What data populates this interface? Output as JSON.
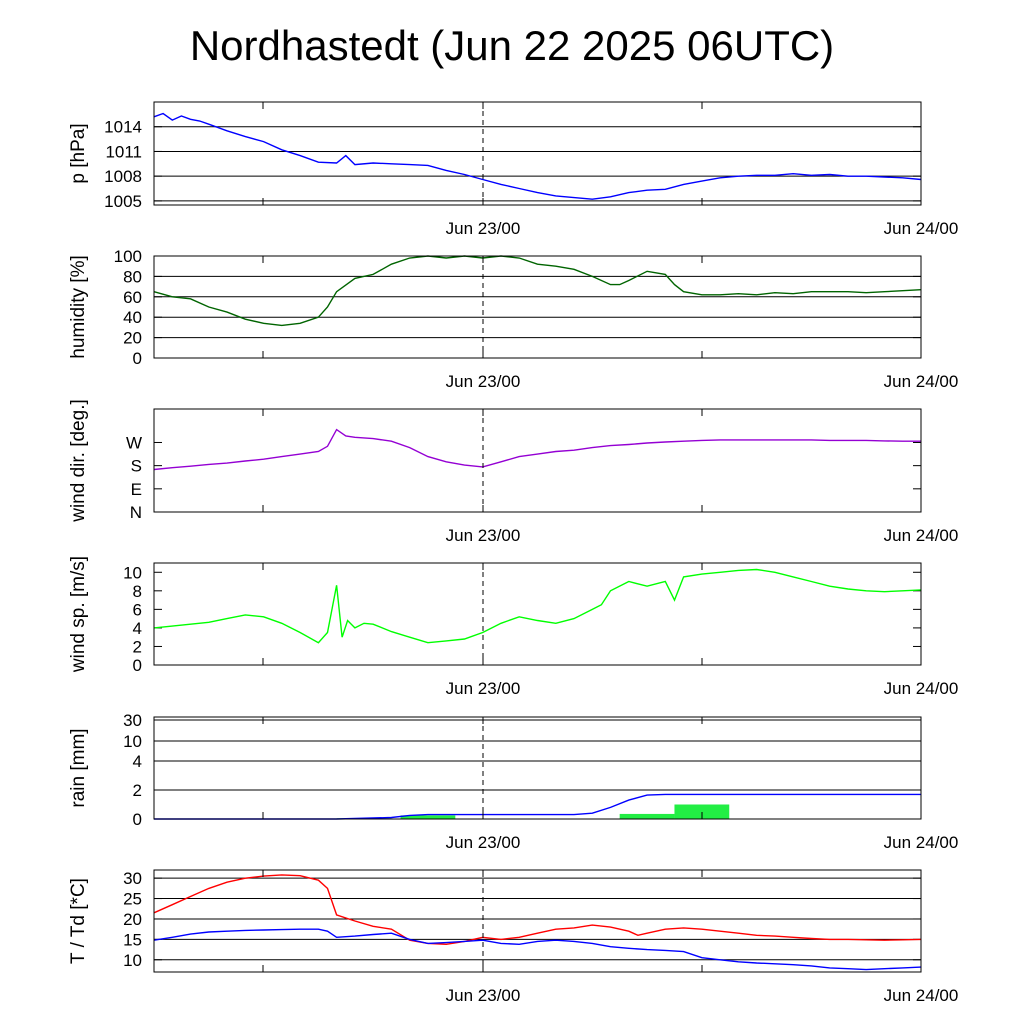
{
  "title": "Nordhastedt (Jun 22 2025 06UTC)",
  "x_ticks": [
    "Jun 23/00",
    "Jun 24/00"
  ],
  "chart_data": [
    {
      "type": "line",
      "ylabel": "p [hPa]",
      "x_unit": "hours since Jun 22 2025 06UTC",
      "xlim": [
        0,
        42
      ],
      "ylim": [
        1004.5,
        1017
      ],
      "yticks": [
        1005,
        1008,
        1011,
        1014
      ],
      "grid": true,
      "series": [
        {
          "color": "#0000ff",
          "x": [
            0,
            0.5,
            1,
            1.5,
            2,
            2.5,
            3,
            4,
            5,
            6,
            7,
            8,
            9,
            10,
            10.5,
            11,
            12,
            13,
            14,
            15,
            16,
            17,
            18,
            19,
            20,
            21,
            22,
            23,
            24,
            25,
            26,
            27,
            28,
            29,
            30,
            31,
            32,
            33,
            34,
            35,
            36,
            37,
            38,
            39,
            40,
            41,
            42
          ],
          "y": [
            1015.2,
            1015.6,
            1014.8,
            1015.3,
            1014.9,
            1014.7,
            1014.3,
            1013.5,
            1012.8,
            1012.2,
            1011.2,
            1010.5,
            1009.7,
            1009.6,
            1010.5,
            1009.4,
            1009.6,
            1009.5,
            1009.4,
            1009.3,
            1008.7,
            1008.2,
            1007.6,
            1007.0,
            1006.5,
            1006.0,
            1005.6,
            1005.4,
            1005.2,
            1005.5,
            1006.0,
            1006.3,
            1006.4,
            1007.0,
            1007.4,
            1007.8,
            1008.0,
            1008.1,
            1008.1,
            1008.3,
            1008.1,
            1008.2,
            1008.0,
            1008.0,
            1007.9,
            1007.8,
            1007.6
          ]
        }
      ]
    },
    {
      "type": "line",
      "ylabel": "humidity [%]",
      "x_unit": "hours since Jun 22 2025 06UTC",
      "xlim": [
        0,
        42
      ],
      "ylim": [
        0,
        100
      ],
      "yticks": [
        0,
        20,
        40,
        60,
        80,
        100
      ],
      "grid": true,
      "series": [
        {
          "color": "#006400",
          "x": [
            0,
            1,
            2,
            3,
            4,
            5,
            6,
            7,
            8,
            9,
            9.5,
            10,
            11,
            12,
            13,
            14,
            15,
            16,
            17,
            18,
            19,
            20,
            21,
            22,
            23,
            24,
            25,
            25.5,
            26,
            27,
            28,
            28.5,
            29,
            30,
            31,
            32,
            33,
            34,
            35,
            36,
            37,
            38,
            39,
            40,
            41,
            42
          ],
          "y": [
            65,
            60,
            58,
            50,
            45,
            38,
            34,
            32,
            34,
            40,
            50,
            65,
            78,
            82,
            92,
            98,
            100,
            98,
            100,
            98,
            100,
            98,
            92,
            90,
            87,
            80,
            72,
            72,
            76,
            85,
            82,
            72,
            65,
            62,
            62,
            63,
            62,
            64,
            63,
            65,
            65,
            65,
            64,
            65,
            66,
            67
          ]
        }
      ]
    },
    {
      "type": "line",
      "ylabel": "wind dir. [deg.]",
      "x_unit": "hours since Jun 22 2025 06UTC",
      "xlim": [
        0,
        42
      ],
      "ylim": [
        0,
        400
      ],
      "yticks": [
        0,
        90,
        180,
        270
      ],
      "ytick_labels": [
        "N",
        "E",
        "S",
        "W"
      ],
      "grid": false,
      "series": [
        {
          "color": "#9400d3",
          "x": [
            0,
            1,
            2,
            3,
            4,
            5,
            6,
            7,
            8,
            9,
            9.5,
            10,
            10.5,
            11,
            12,
            13,
            14,
            15,
            16,
            17,
            18,
            19,
            20,
            21,
            22,
            23,
            24,
            25,
            26,
            27,
            28,
            29,
            30,
            31,
            32,
            33,
            34,
            35,
            36,
            37,
            38,
            39,
            40,
            41,
            42
          ],
          "y": [
            165,
            172,
            178,
            185,
            190,
            198,
            205,
            215,
            225,
            235,
            255,
            320,
            295,
            290,
            285,
            275,
            250,
            215,
            195,
            182,
            175,
            195,
            215,
            225,
            235,
            240,
            250,
            258,
            262,
            268,
            272,
            275,
            278,
            280,
            280,
            280,
            280,
            280,
            280,
            278,
            278,
            278,
            276,
            275,
            275
          ]
        }
      ]
    },
    {
      "type": "line",
      "ylabel": "wind sp. [m/s]",
      "x_unit": "hours since Jun 22 2025 06UTC",
      "xlim": [
        0,
        42
      ],
      "ylim": [
        0,
        11
      ],
      "yticks": [
        0,
        2,
        4,
        6,
        8,
        10
      ],
      "grid": false,
      "series": [
        {
          "color": "#00ff00",
          "x": [
            0,
            1,
            2,
            3,
            4,
            5,
            6,
            7,
            8,
            9,
            9.5,
            10,
            10.3,
            10.6,
            11,
            11.5,
            12,
            13,
            14,
            15,
            16,
            17,
            18,
            19,
            20,
            21,
            22,
            23,
            24,
            24.5,
            25,
            26,
            27,
            28,
            28.5,
            29,
            30,
            31,
            32,
            33,
            34,
            35,
            36,
            37,
            38,
            39,
            40,
            41,
            42
          ],
          "y": [
            4.0,
            4.2,
            4.4,
            4.6,
            5.0,
            5.4,
            5.2,
            4.5,
            3.5,
            2.4,
            3.5,
            8.6,
            3.0,
            4.8,
            4.0,
            4.5,
            4.4,
            3.6,
            3.0,
            2.4,
            2.6,
            2.8,
            3.5,
            4.5,
            5.2,
            4.8,
            4.5,
            5.0,
            6.0,
            6.5,
            8.0,
            9.0,
            8.5,
            9.0,
            7.0,
            9.5,
            9.8,
            10.0,
            10.2,
            10.3,
            10.0,
            9.5,
            9.0,
            8.5,
            8.2,
            8.0,
            7.9,
            8.0,
            8.1
          ]
        }
      ]
    },
    {
      "type": "line",
      "ylabel": "rain [mm]",
      "x_unit": "hours since Jun 22 2025 06UTC",
      "xlim": [
        0,
        42
      ],
      "yticks": [
        0,
        2,
        4,
        10,
        30
      ],
      "scale": "nonlinear (0,2,4,10,30 evenly spaced ticks)",
      "grid": true,
      "series": [
        {
          "color": "#0000ff",
          "x": [
            0,
            10,
            13,
            14,
            15,
            16,
            17,
            18,
            19,
            20,
            21,
            22,
            23,
            24,
            25,
            26,
            27,
            28,
            29,
            30,
            31,
            32,
            33,
            34,
            35,
            36,
            37,
            38,
            39,
            40,
            41,
            42
          ],
          "y": [
            0.0,
            0.0,
            0.1,
            0.25,
            0.3,
            0.3,
            0.3,
            0.3,
            0.3,
            0.3,
            0.3,
            0.3,
            0.3,
            0.4,
            0.8,
            1.3,
            1.65,
            1.7,
            1.7,
            1.7,
            1.7,
            1.7,
            1.7,
            1.7,
            1.7,
            1.7,
            1.7,
            1.7,
            1.7,
            1.7,
            1.7,
            1.7
          ]
        },
        {
          "color": "#22ee44",
          "type": "bar",
          "x": [
            10,
            13.5,
            25.5,
            28.5
          ],
          "width": [
            3,
            3,
            3,
            3
          ],
          "y": [
            0.05,
            0.25,
            0.35,
            1.0
          ]
        }
      ]
    },
    {
      "type": "line",
      "ylabel": "T / Td [*C]",
      "x_unit": "hours since Jun 22 2025 06UTC",
      "xlim": [
        0,
        42
      ],
      "ylim": [
        7,
        32
      ],
      "yticks": [
        10,
        15,
        20,
        25,
        30
      ],
      "grid": true,
      "series": [
        {
          "color": "#ff0000",
          "x": [
            0,
            1,
            2,
            3,
            4,
            5,
            6,
            7,
            8,
            9,
            9.5,
            10,
            11,
            12,
            13,
            14,
            15,
            16,
            17,
            18,
            19,
            20,
            21,
            22,
            23,
            24,
            25,
            26,
            26.5,
            27,
            28,
            29,
            30,
            31,
            32,
            33,
            34,
            35,
            36,
            37,
            38,
            39,
            40,
            41,
            42
          ],
          "y": [
            21.5,
            23.5,
            25.5,
            27.5,
            29,
            30,
            30.5,
            30.8,
            30.6,
            29.5,
            27.5,
            21,
            19.5,
            18.2,
            17.5,
            14.8,
            14.0,
            13.8,
            14.5,
            15.5,
            15.0,
            15.5,
            16.5,
            17.5,
            17.8,
            18.5,
            18.0,
            17.0,
            16.0,
            16.5,
            17.5,
            17.8,
            17.5,
            17.0,
            16.5,
            16.0,
            15.8,
            15.5,
            15.2,
            15.0,
            15.0,
            14.9,
            14.8,
            14.9,
            15.0
          ]
        },
        {
          "color": "#0000ff",
          "x": [
            0,
            1,
            2,
            3,
            4,
            5,
            6,
            7,
            8,
            9,
            9.5,
            10,
            11,
            12,
            13,
            14,
            15,
            16,
            17,
            18,
            19,
            20,
            21,
            22,
            23,
            24,
            25,
            26,
            27,
            28,
            29,
            30,
            31,
            32,
            33,
            34,
            35,
            36,
            37,
            38,
            39,
            40,
            41,
            42
          ],
          "y": [
            14.8,
            15.5,
            16.3,
            16.8,
            17.0,
            17.2,
            17.3,
            17.4,
            17.5,
            17.5,
            17.0,
            15.5,
            15.8,
            16.2,
            16.5,
            15.0,
            14.0,
            14.2,
            14.5,
            14.8,
            14.0,
            13.8,
            14.5,
            14.8,
            14.5,
            14.0,
            13.2,
            12.8,
            12.5,
            12.3,
            12.0,
            10.5,
            10.0,
            9.5,
            9.2,
            9.0,
            8.8,
            8.5,
            8.0,
            7.8,
            7.6,
            7.8,
            8.0,
            8.2
          ]
        }
      ]
    }
  ]
}
